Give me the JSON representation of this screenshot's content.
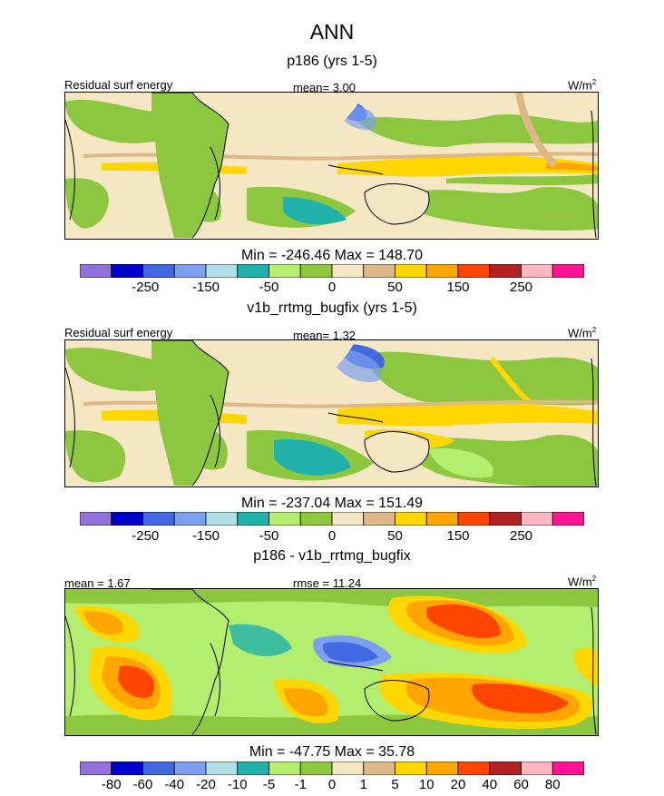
{
  "figure": {
    "title": "ANN"
  },
  "colors": {
    "palette": [
      "#9370DB",
      "#0000CD",
      "#4169E1",
      "#7CA0F0",
      "#B0E0E6",
      "#20B2AA",
      "#B4EE6E",
      "#8DC63F",
      "#F5E6C4",
      "#DEB887",
      "#FFD700",
      "#FFA500",
      "#FF4500",
      "#B22222",
      "#FFB6C1",
      "#FF1493"
    ],
    "coast": "#000000"
  },
  "panels": [
    {
      "title": "p186 (yrs 1-5)",
      "left_label": "Residual surf energy",
      "center_label": "mean=   3.00",
      "right_label": "W/m",
      "right_sup": "2",
      "stats": "Min = -246.46 Max = 148.70",
      "colorbar_labels": [
        "-250",
        "-150",
        "-50",
        "0",
        "50",
        "150",
        "250"
      ]
    },
    {
      "title": "v1b_rrtmg_bugfix (yrs 1-5)",
      "left_label": "Residual surf energy",
      "center_label": "mean=   1.32",
      "right_label": "W/m",
      "right_sup": "2",
      "stats": "Min = -237.04 Max = 151.49",
      "colorbar_labels": [
        "-250",
        "-150",
        "-50",
        "0",
        "50",
        "150",
        "250"
      ]
    },
    {
      "title": "p186 - v1b_rrtmg_bugfix",
      "left_label": "mean =   1.67",
      "center_label": "rmse =   11.24",
      "right_label": "W/m",
      "right_sup": "2",
      "stats": "Min = -47.75 Max =  35.78",
      "colorbar_labels": [
        "-80",
        "-60",
        "-40",
        "-20",
        "-10",
        "-5",
        "-1",
        "0",
        "1",
        "5",
        "10",
        "20",
        "40",
        "60",
        "80"
      ]
    }
  ],
  "chart_data": [
    {
      "type": "heatmap",
      "title": "p186 (yrs 1-5)",
      "variable": "Residual surf energy",
      "units": "W/m2",
      "mean": 3.0,
      "min": -246.46,
      "max": 148.7,
      "color_levels": [
        -300,
        -250,
        -200,
        -150,
        -100,
        -50,
        -25,
        0,
        25,
        50,
        100,
        150,
        200,
        250,
        300
      ]
    },
    {
      "type": "heatmap",
      "title": "v1b_rrtmg_bugfix (yrs 1-5)",
      "variable": "Residual surf energy",
      "units": "W/m2",
      "mean": 1.32,
      "min": -237.04,
      "max": 151.49,
      "color_levels": [
        -300,
        -250,
        -200,
        -150,
        -100,
        -50,
        -25,
        0,
        25,
        50,
        100,
        150,
        200,
        250,
        300
      ]
    },
    {
      "type": "heatmap",
      "title": "p186 - v1b_rrtmg_bugfix",
      "units": "W/m2",
      "mean": 1.67,
      "rmse": 11.24,
      "min": -47.75,
      "max": 35.78,
      "color_levels": [
        -80,
        -60,
        -40,
        -20,
        -10,
        -5,
        -1,
        0,
        1,
        5,
        10,
        20,
        40,
        60,
        80
      ]
    }
  ]
}
